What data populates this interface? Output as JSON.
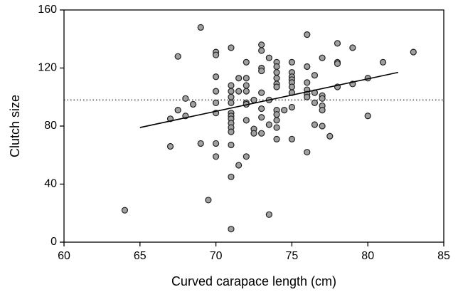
{
  "chart_data": {
    "type": "scatter",
    "x_label": "Curved carapace length (cm)",
    "y_label": "Clutch size",
    "x": [
      64,
      67,
      67,
      67.5,
      67.5,
      68,
      68,
      68.5,
      69,
      69,
      69.5,
      70,
      70,
      70,
      70,
      70,
      70,
      70,
      70,
      71,
      71,
      71,
      71,
      71,
      71,
      71,
      71,
      71,
      71,
      71,
      71,
      71,
      71,
      71.5,
      71.5,
      71.5,
      72,
      72,
      72,
      72,
      72,
      72,
      72,
      72,
      72.5,
      72.5,
      72.5,
      73,
      73,
      73,
      73,
      73,
      73,
      73,
      73,
      73.5,
      73.5,
      73.5,
      73.5,
      74,
      74,
      74,
      74,
      74,
      74,
      74,
      74,
      74,
      74,
      74,
      74.5,
      75,
      75,
      75,
      75,
      75,
      75,
      75,
      75,
      75,
      76,
      76,
      76,
      76,
      76,
      76,
      76,
      76.5,
      76.5,
      76.5,
      76.5,
      77,
      77,
      77,
      77,
      77,
      77,
      77.5,
      78,
      78,
      78,
      78,
      79,
      79,
      80,
      80,
      81,
      83
    ],
    "values": [
      22,
      66,
      85,
      91,
      128,
      87,
      99,
      95,
      148,
      68,
      29,
      131,
      129,
      114,
      104,
      96,
      89,
      68,
      59,
      134,
      108,
      104,
      100,
      96,
      89,
      87,
      85,
      82,
      79,
      76,
      67,
      45,
      9,
      113,
      104,
      53,
      124,
      113,
      108,
      104,
      96,
      95,
      84,
      59,
      98,
      78,
      75,
      136,
      132,
      120,
      118,
      103,
      92,
      86,
      75,
      127,
      98,
      81,
      19,
      124,
      121,
      117,
      113,
      109,
      107,
      91,
      88,
      84,
      79,
      71,
      91,
      124,
      117,
      114,
      112,
      110,
      107,
      103,
      93,
      71,
      143,
      121,
      110,
      105,
      102,
      100,
      62,
      115,
      103,
      96,
      81,
      127,
      101,
      99,
      94,
      91,
      80,
      73,
      137,
      124,
      123,
      107,
      134,
      109,
      113,
      87,
      124,
      131
    ],
    "color": "#a0a0a0",
    "trend_line": {
      "x": [
        65,
        82
      ],
      "y": [
        79,
        117
      ]
    },
    "reference_line": 98,
    "xlim": [
      60,
      85
    ],
    "xticks": [
      60,
      65,
      70,
      75,
      80,
      85
    ],
    "ylim": [
      0,
      160
    ],
    "yticks": [
      0,
      40,
      80,
      120,
      160
    ]
  }
}
